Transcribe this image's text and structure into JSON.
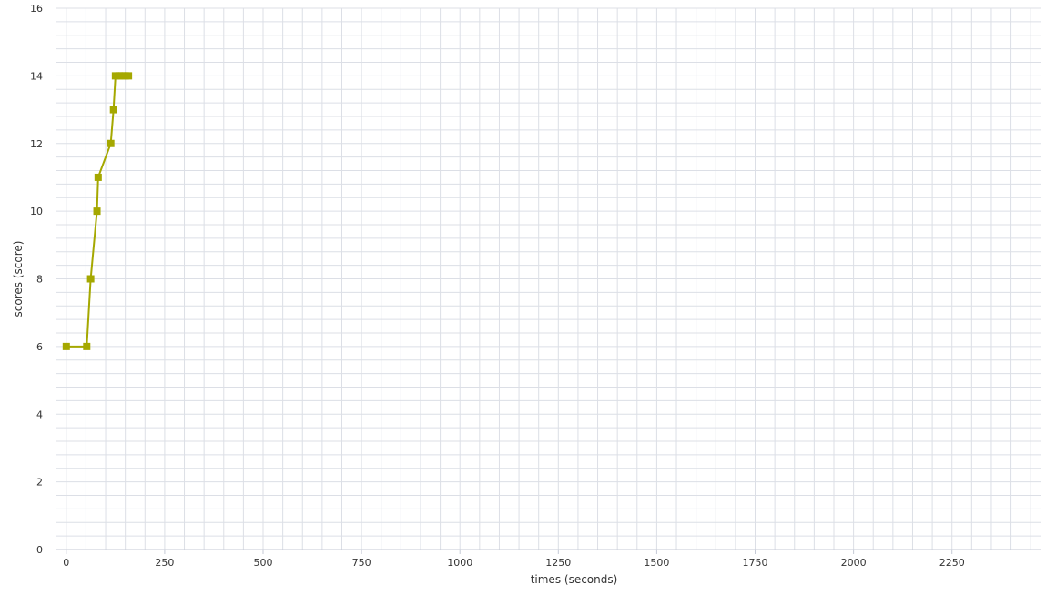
{
  "chart_data": {
    "type": "line",
    "title": "",
    "xlabel": "times (seconds)",
    "ylabel": "scores (score)",
    "xlim": [
      -25,
      2475
    ],
    "ylim": [
      0,
      16
    ],
    "x_ticks": [
      0,
      250,
      500,
      750,
      1000,
      1250,
      1500,
      1750,
      2000,
      2250
    ],
    "y_ticks": [
      0,
      2,
      4,
      6,
      8,
      10,
      12,
      14,
      16
    ],
    "x_minor_step": 50,
    "y_minor_step": 0.4,
    "grid": true,
    "legend": "none",
    "series": [
      {
        "color": "#a5a800",
        "marker": "square",
        "points": [
          {
            "x": 0,
            "y": 6
          },
          {
            "x": 52,
            "y": 6
          },
          {
            "x": 62,
            "y": 8
          },
          {
            "x": 78,
            "y": 10
          },
          {
            "x": 81,
            "y": 11
          },
          {
            "x": 113,
            "y": 12
          },
          {
            "x": 120,
            "y": 13
          },
          {
            "x": 125,
            "y": 14
          },
          {
            "x": 134,
            "y": 14
          },
          {
            "x": 142,
            "y": 14
          },
          {
            "x": 150,
            "y": 14
          },
          {
            "x": 158,
            "y": 14
          }
        ]
      }
    ]
  },
  "colors": {
    "grid": "#dcdfe6",
    "axis": "#c5cad6",
    "text": "#333333"
  }
}
